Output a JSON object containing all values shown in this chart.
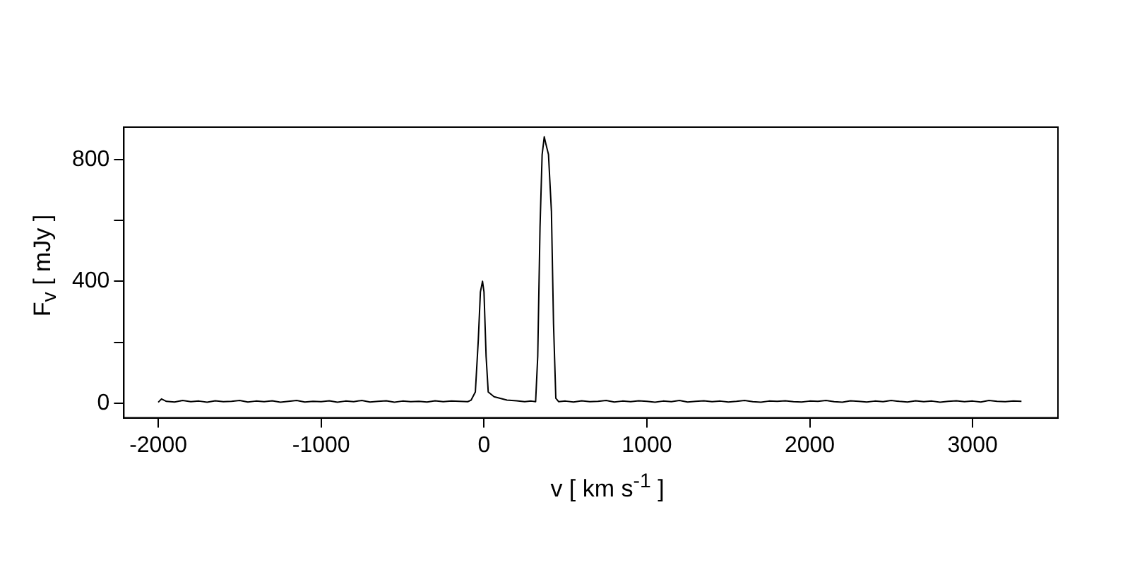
{
  "chart_data": {
    "type": "line",
    "xlabel": "v [ km s$^{-1}$ ]",
    "ylabel": "F$_{v}$ [ mJy ]",
    "xlim": [
      -2211,
      3524
    ],
    "ylim": [
      -48,
      906
    ],
    "xticks": [
      -2000,
      -1000,
      0,
      1000,
      2000,
      3000
    ],
    "yticks": [
      0,
      {
        "value": 200,
        "label": null
      },
      400,
      {
        "value": 600,
        "label": null
      },
      800
    ],
    "grid": false,
    "legend": false,
    "marker": "none",
    "line_style": "solid",
    "series": [
      {
        "color": "#000000",
        "x": [
          -2000,
          -1980,
          -1950,
          -1900,
          -1850,
          -1800,
          -1750,
          -1700,
          -1650,
          -1600,
          -1550,
          -1500,
          -1450,
          -1400,
          -1350,
          -1300,
          -1250,
          -1200,
          -1150,
          -1100,
          -1050,
          -1000,
          -950,
          -900,
          -850,
          -800,
          -750,
          -700,
          -650,
          -600,
          -550,
          -500,
          -450,
          -400,
          -350,
          -300,
          -250,
          -200,
          -150,
          -100,
          -79,
          -53,
          -35,
          -22,
          -9,
          0,
          13,
          26,
          62,
          141,
          200,
          250,
          290,
          317,
          330,
          344,
          357,
          370,
          379,
          396,
          414,
          427,
          441,
          458,
          500,
          550,
          600,
          650,
          700,
          750,
          800,
          850,
          900,
          950,
          1000,
          1050,
          1100,
          1150,
          1200,
          1250,
          1300,
          1350,
          1400,
          1450,
          1500,
          1550,
          1600,
          1650,
          1700,
          1750,
          1800,
          1850,
          1900,
          1950,
          2000,
          2050,
          2100,
          2150,
          2200,
          2250,
          2300,
          2350,
          2400,
          2450,
          2500,
          2550,
          2600,
          2650,
          2700,
          2750,
          2800,
          2850,
          2900,
          2950,
          3000,
          3050,
          3100,
          3150,
          3200,
          3250,
          3300
        ],
        "values": [
          3,
          14,
          6,
          4,
          9,
          5,
          7,
          3,
          8,
          5,
          6,
          9,
          4,
          7,
          5,
          8,
          3,
          6,
          9,
          4,
          6,
          5,
          8,
          3,
          7,
          5,
          9,
          4,
          6,
          8,
          3,
          7,
          5,
          6,
          4,
          8,
          5,
          7,
          6,
          5,
          10,
          37,
          207,
          365,
          400,
          365,
          154,
          37,
          21,
          10,
          8,
          5,
          7,
          5,
          154,
          577,
          816,
          874,
          853,
          816,
          630,
          260,
          16,
          5,
          7,
          4,
          8,
          5,
          6,
          9,
          4,
          7,
          5,
          8,
          6,
          3,
          7,
          5,
          9,
          4,
          6,
          8,
          5,
          7,
          4,
          6,
          9,
          5,
          3,
          7,
          6,
          8,
          5,
          4,
          7,
          6,
          9,
          5,
          3,
          8,
          6,
          4,
          7,
          5,
          9,
          6,
          4,
          8,
          5,
          7,
          3,
          6,
          8,
          5,
          7,
          4,
          9,
          6,
          5,
          7,
          6
        ]
      }
    ]
  }
}
